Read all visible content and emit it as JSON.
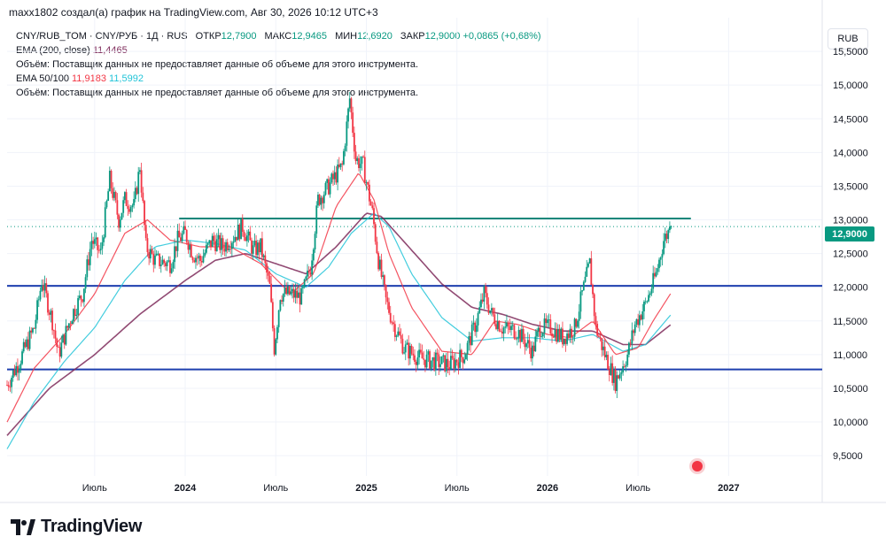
{
  "header": {
    "created_by": "maxx1802 создал(а) график на TradingView.com, Авг 30, 2026 10:12 UTC+3"
  },
  "legend": {
    "symbol": "CNY/RUB_TOM · CNY/РУБ · 1Д · RUS",
    "open_label": "ОТКР",
    "open": "12,7900",
    "high_label": "МАКС",
    "high": "12,9465",
    "low_label": "МИН",
    "low": "12,6920",
    "close_label": "ЗАКР",
    "close": "12,9000",
    "change": "+0,0865 (+0,68%)",
    "ema200_label": "EMA (200, close)",
    "ema200_value": "11,4465",
    "volume_note_1": "Объём: Поставщик данных не предоставляет данные об объеме для этого инструмента.",
    "ema50100_label": "EMA 50/100",
    "ema50_value": "11,9183",
    "ema100_value": "11,5992",
    "volume_note_2": "Объём: Поставщик данных не предоставляет данные об объеме для этого инструмента."
  },
  "currency_button": "RUB",
  "price_tag": "12,9000",
  "footer": {
    "wordmark": "TradingView"
  },
  "colors": {
    "up": "#089981",
    "down": "#f23645",
    "ema200": "#7e2a5a",
    "ema50": "#f23645",
    "ema100": "#22c4d8",
    "level_blue": "#1e3fae",
    "level_teal": "#16877a"
  },
  "icons": [
    "tradingview-logo-icon",
    "alert-dot-icon"
  ],
  "chart_data": {
    "type": "candlestick",
    "y_ticks": [
      "15,5000",
      "15,0000",
      "14,5000",
      "14,0000",
      "13,5000",
      "13,0000",
      "12,5000",
      "12,0000",
      "11,5000",
      "11,0000",
      "10,5000",
      "10,0000",
      "9,5000"
    ],
    "y_tick_values": [
      15.5,
      15.0,
      14.5,
      14.0,
      13.5,
      13.0,
      12.5,
      12.0,
      11.5,
      11.0,
      10.5,
      10.0,
      9.5
    ],
    "ylim": [
      9.2,
      16.0
    ],
    "x_ticks": [
      "Июль",
      "2024",
      "Июль",
      "2025",
      "Июль",
      "2026",
      "Июль",
      "2027"
    ],
    "x_tick_positions_months": [
      6,
      12,
      18,
      24,
      30,
      36,
      42,
      48
    ],
    "xlim_months": [
      0.2,
      54.2
    ],
    "horizontal_levels": [
      {
        "value": 13.02,
        "color": "teal"
      },
      {
        "value": 12.02,
        "color": "blue"
      },
      {
        "value": 10.78,
        "color": "blue"
      }
    ],
    "last_price": 12.9,
    "price_path": [
      [
        0.2,
        10.55
      ],
      [
        1,
        10.9
      ],
      [
        2,
        11.4
      ],
      [
        2.5,
        12.1
      ],
      [
        3.2,
        11.5
      ],
      [
        3.6,
        11.0
      ],
      [
        4.5,
        11.6
      ],
      [
        5.2,
        11.9
      ],
      [
        5.8,
        12.7
      ],
      [
        6.4,
        12.5
      ],
      [
        7,
        13.6
      ],
      [
        7.6,
        13.0
      ],
      [
        8,
        13.3
      ],
      [
        8.6,
        13.2
      ],
      [
        9,
        13.8
      ],
      [
        9.4,
        12.6
      ],
      [
        10,
        12.4
      ],
      [
        11,
        12.35
      ],
      [
        11.5,
        12.7
      ],
      [
        12,
        12.8
      ],
      [
        12.5,
        12.5
      ],
      [
        13,
        12.4
      ],
      [
        13.8,
        12.7
      ],
      [
        14.5,
        12.6
      ],
      [
        15.2,
        12.75
      ],
      [
        15.8,
        12.9
      ],
      [
        16.5,
        12.55
      ],
      [
        17,
        12.6
      ],
      [
        17.6,
        12.0
      ],
      [
        17.9,
        11.1
      ],
      [
        18.3,
        11.9
      ],
      [
        19,
        11.9
      ],
      [
        19.7,
        11.85
      ],
      [
        20.3,
        12.3
      ],
      [
        20.8,
        13.3
      ],
      [
        21.5,
        13.5
      ],
      [
        22.4,
        13.8
      ],
      [
        22.9,
        14.8
      ],
      [
        23.3,
        13.9
      ],
      [
        23.8,
        13.8
      ],
      [
        24.4,
        13.1
      ],
      [
        24.8,
        12.4
      ],
      [
        25.3,
        11.8
      ],
      [
        25.8,
        11.45
      ],
      [
        26.5,
        11.1
      ],
      [
        27.5,
        10.95
      ],
      [
        28.5,
        10.9
      ],
      [
        29.5,
        10.85
      ],
      [
        30.5,
        11.0
      ],
      [
        31.3,
        11.5
      ],
      [
        31.8,
        11.9
      ],
      [
        32.3,
        11.6
      ],
      [
        33,
        11.4
      ],
      [
        34,
        11.35
      ],
      [
        35,
        11.05
      ],
      [
        35.5,
        11.4
      ],
      [
        36.2,
        11.4
      ],
      [
        37,
        11.25
      ],
      [
        37.8,
        11.4
      ],
      [
        38.3,
        11.9
      ],
      [
        38.8,
        12.35
      ],
      [
        39.2,
        11.4
      ],
      [
        39.8,
        11.0
      ],
      [
        40.5,
        10.6
      ],
      [
        41.3,
        11.0
      ],
      [
        41.8,
        11.45
      ],
      [
        42.5,
        11.75
      ],
      [
        43.2,
        12.2
      ],
      [
        43.7,
        12.7
      ],
      [
        44.2,
        12.9
      ]
    ],
    "ema200_path": [
      [
        0.2,
        9.8
      ],
      [
        3,
        10.5
      ],
      [
        6,
        11.0
      ],
      [
        9,
        11.6
      ],
      [
        12,
        12.1
      ],
      [
        14,
        12.4
      ],
      [
        16,
        12.5
      ],
      [
        18,
        12.35
      ],
      [
        20,
        12.2
      ],
      [
        22,
        12.6
      ],
      [
        24,
        13.1
      ],
      [
        25,
        13.05
      ],
      [
        27,
        12.55
      ],
      [
        29,
        12.05
      ],
      [
        31,
        11.7
      ],
      [
        33,
        11.6
      ],
      [
        35,
        11.45
      ],
      [
        37,
        11.35
      ],
      [
        39,
        11.35
      ],
      [
        41,
        11.15
      ],
      [
        42.5,
        11.15
      ],
      [
        44.2,
        11.45
      ]
    ],
    "ema50_path": [
      [
        0.2,
        10.0
      ],
      [
        2,
        10.8
      ],
      [
        4,
        11.3
      ],
      [
        6,
        11.9
      ],
      [
        8,
        12.8
      ],
      [
        9.5,
        13.0
      ],
      [
        11,
        12.7
      ],
      [
        13,
        12.6
      ],
      [
        15,
        12.6
      ],
      [
        17,
        12.35
      ],
      [
        19,
        11.9
      ],
      [
        20.5,
        12.2
      ],
      [
        22,
        13.2
      ],
      [
        23.5,
        13.7
      ],
      [
        24.5,
        13.3
      ],
      [
        25.5,
        12.5
      ],
      [
        27,
        11.7
      ],
      [
        29,
        11.05
      ],
      [
        31,
        11.0
      ],
      [
        32.5,
        11.5
      ],
      [
        34,
        11.45
      ],
      [
        36,
        11.3
      ],
      [
        37.5,
        11.25
      ],
      [
        39,
        11.5
      ],
      [
        40.5,
        11.0
      ],
      [
        42,
        11.1
      ],
      [
        43,
        11.5
      ],
      [
        44.2,
        11.92
      ]
    ],
    "ema100_path": [
      [
        0.2,
        9.6
      ],
      [
        2,
        10.3
      ],
      [
        4,
        10.9
      ],
      [
        6,
        11.4
      ],
      [
        8,
        12.1
      ],
      [
        10,
        12.6
      ],
      [
        12,
        12.7
      ],
      [
        14,
        12.65
      ],
      [
        16,
        12.55
      ],
      [
        18,
        12.2
      ],
      [
        20,
        12.0
      ],
      [
        21.5,
        12.3
      ],
      [
        23,
        12.8
      ],
      [
        24.5,
        13.1
      ],
      [
        25.5,
        12.9
      ],
      [
        27,
        12.2
      ],
      [
        29,
        11.55
      ],
      [
        31,
        11.2
      ],
      [
        33,
        11.25
      ],
      [
        35,
        11.25
      ],
      [
        37,
        11.2
      ],
      [
        39,
        11.3
      ],
      [
        41,
        11.05
      ],
      [
        42.5,
        11.15
      ],
      [
        44.2,
        11.6
      ]
    ]
  }
}
